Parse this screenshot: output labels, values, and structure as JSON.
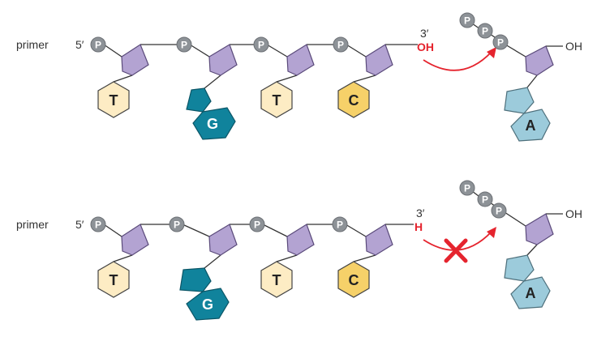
{
  "colors": {
    "phosphate": "#8d9297",
    "sugar": "#b3a3d2",
    "sugar_stroke": "#5a4a7a",
    "T": "#fdecc4",
    "C": "#f6d169",
    "G": "#10839c",
    "A": "#9ccbdb",
    "arrow": "#e5242e",
    "line": "#333333"
  },
  "labels": {
    "primer": "primer",
    "five_prime": "5′",
    "three_prime": "3′",
    "phosphate": "P",
    "oh": "OH",
    "h": "H"
  },
  "top": {
    "bases": [
      "T",
      "G",
      "T",
      "C"
    ],
    "end_group": "OH",
    "incoming_base": "A",
    "reaction": "allowed"
  },
  "bottom": {
    "bases": [
      "T",
      "G",
      "T",
      "C"
    ],
    "end_group": "H",
    "incoming_base": "A",
    "reaction": "blocked"
  }
}
